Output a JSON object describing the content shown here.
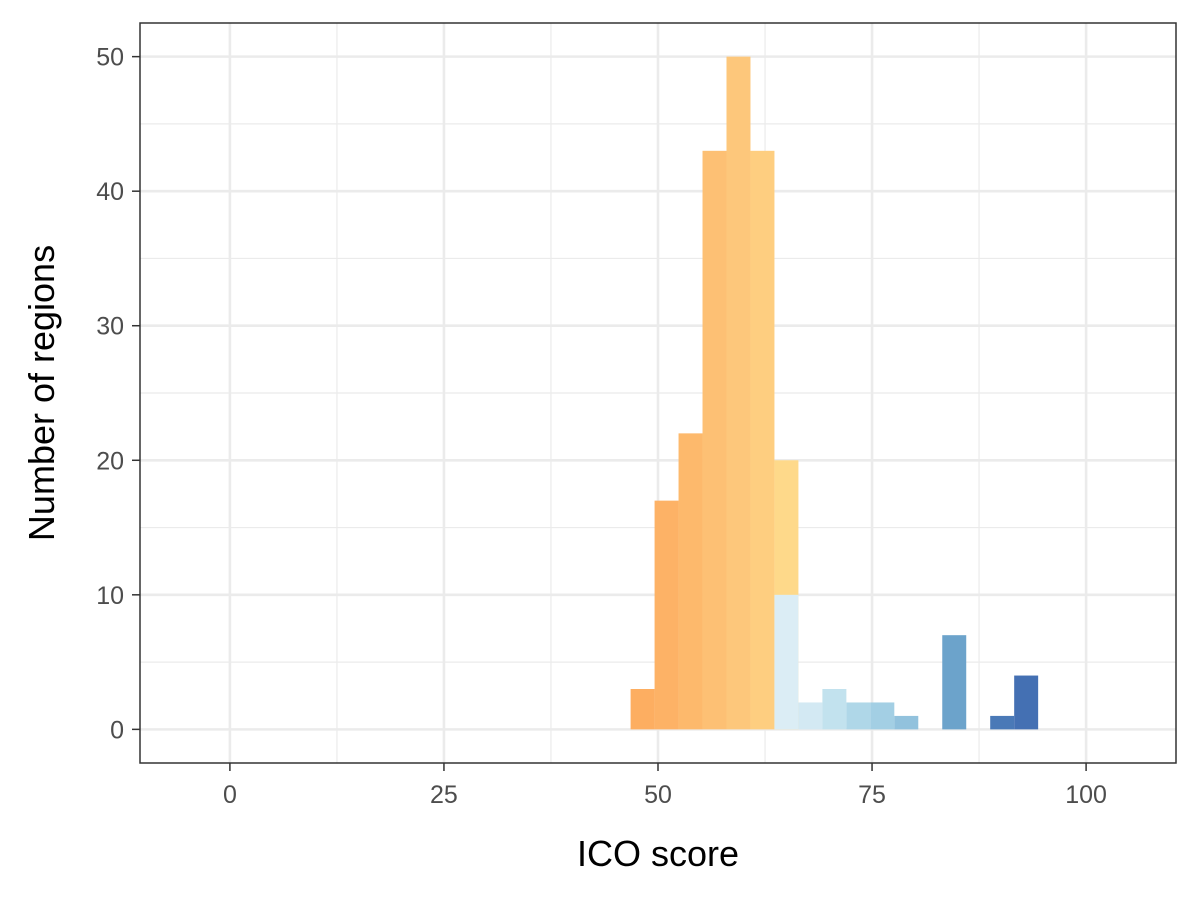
{
  "chart_data": {
    "type": "bar",
    "xlabel": "ICO score",
    "ylabel": "Number of regions",
    "xlim": [
      -10.5,
      110.5
    ],
    "ylim": [
      -2.5,
      52.5
    ],
    "x_ticks": [
      0,
      25,
      50,
      75,
      100
    ],
    "y_ticks": [
      0,
      10,
      20,
      30,
      40,
      50
    ],
    "grid": true,
    "bin_width": 2.8,
    "bars": [
      {
        "x": 48.2,
        "value": 3,
        "color": "#fdae61"
      },
      {
        "x": 51.0,
        "value": 17,
        "color": "#fdb266"
      },
      {
        "x": 53.8,
        "value": 22,
        "color": "#fdb96c"
      },
      {
        "x": 56.6,
        "value": 43,
        "color": "#fdc074"
      },
      {
        "x": 59.4,
        "value": 50,
        "color": "#fdc77b"
      },
      {
        "x": 62.2,
        "value": 43,
        "color": "#fece80"
      },
      {
        "x": 65.0,
        "value": 20,
        "color": "#fed98a"
      },
      {
        "x": 65.0,
        "value": 10,
        "color": "#dbedf5"
      },
      {
        "x": 67.8,
        "value": 2,
        "color": "#d3e9f3"
      },
      {
        "x": 70.6,
        "value": 3,
        "color": "#c2e2ee"
      },
      {
        "x": 73.4,
        "value": 2,
        "color": "#afd7e8"
      },
      {
        "x": 76.2,
        "value": 2,
        "color": "#a3cfe4"
      },
      {
        "x": 79.0,
        "value": 1,
        "color": "#92c2dd"
      },
      {
        "x": 84.6,
        "value": 7,
        "color": "#6ca3cb"
      },
      {
        "x": 90.2,
        "value": 1,
        "color": "#4a79b7"
      },
      {
        "x": 93.0,
        "value": 4,
        "color": "#4470b3"
      }
    ]
  }
}
